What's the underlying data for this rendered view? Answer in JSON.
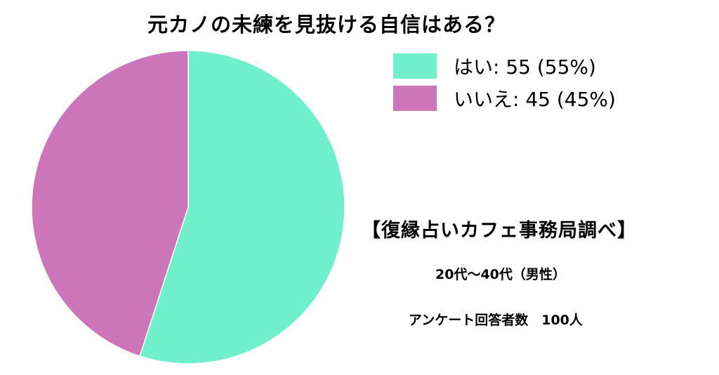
{
  "chart_data": {
    "type": "pie",
    "title": "元カノの未練を見抜ける自信はある？",
    "slices": [
      {
        "label": "はい",
        "value": 55,
        "percent": "55%",
        "color": "#6ff0cb",
        "legend": "はい: 55 (55%)"
      },
      {
        "label": "いいえ",
        "value": 45,
        "percent": "45%",
        "color": "#cc75b8",
        "legend": "いいえ: 45 (45%)"
      }
    ],
    "start_angle": "12 o'clock",
    "direction": "clockwise",
    "legend_position": "top-right"
  },
  "notes": {
    "source": "【復縁占いカフェ事務局調べ】",
    "age_range": "20代〜40代（男性）",
    "respondents": "アンケート回答者数　100人"
  }
}
